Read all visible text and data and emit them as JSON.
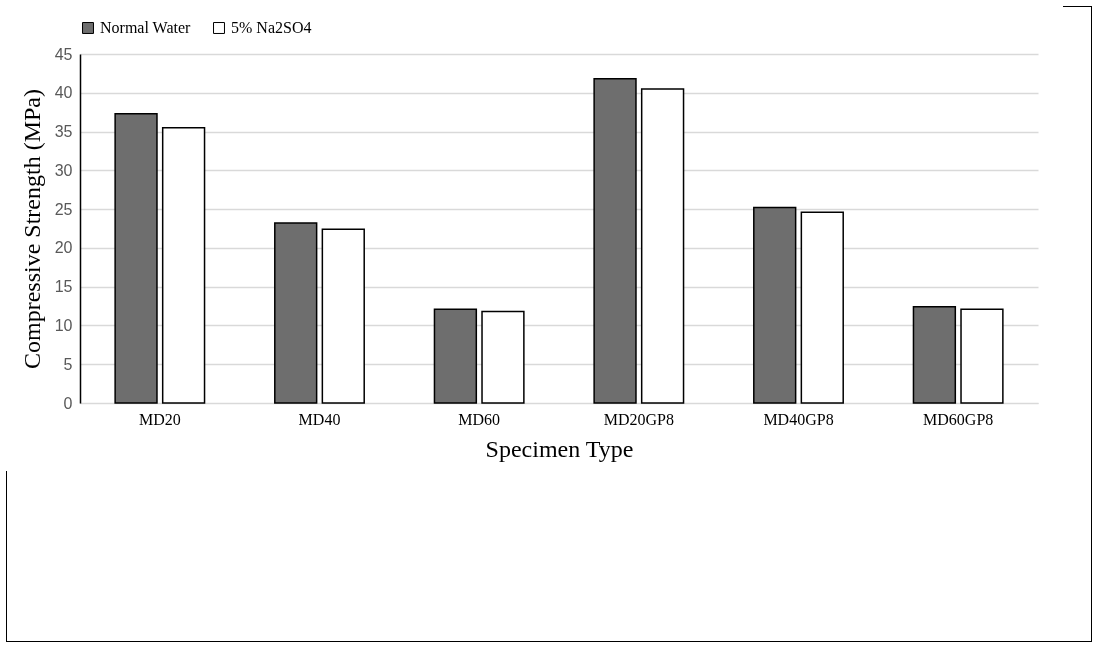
{
  "chart_data": {
    "type": "bar",
    "xlabel": "Specimen Type",
    "ylabel": "Compressive Strength (MPa)",
    "categories": [
      "MD20",
      "MD40",
      "MD60",
      "MD20GP8",
      "MD40GP8",
      "MD60GP8"
    ],
    "series": [
      {
        "name": "Normal Water",
        "color": "#6e6e6e",
        "values": [
          37.3,
          23.2,
          12.1,
          41.8,
          25.2,
          12.4
        ]
      },
      {
        "name": "5% Na2SO4",
        "color": "#ffffff",
        "values": [
          35.5,
          22.4,
          11.8,
          40.5,
          24.6,
          12.1
        ]
      }
    ],
    "ylim": [
      0,
      45
    ],
    "yticks": [
      0,
      5,
      10,
      15,
      20,
      25,
      30,
      35,
      40,
      45
    ],
    "grid": "y",
    "legend": "top"
  }
}
